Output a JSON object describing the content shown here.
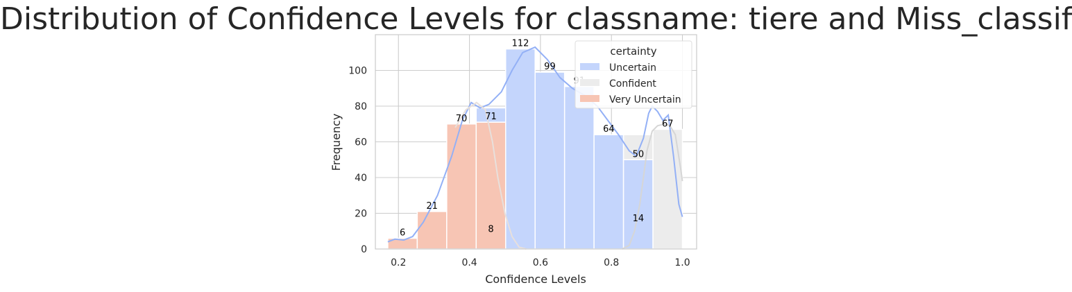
{
  "chart_data": {
    "type": "bar",
    "title": "Distribution of Confidence Levels for classname: tiere and Miss_classified",
    "xlabel": "Confidence Levels",
    "ylabel": "Frequency",
    "xlim": [
      0.135,
      1.04
    ],
    "ylim": [
      0,
      120
    ],
    "xticks": [
      0.2,
      0.4,
      0.6,
      0.8,
      1.0
    ],
    "xtick_labels": [
      "0.2",
      "0.4",
      "0.6",
      "0.8",
      "1.0"
    ],
    "yticks": [
      0,
      20,
      40,
      60,
      80,
      100
    ],
    "ytick_labels": [
      "0",
      "20",
      "40",
      "60",
      "80",
      "100"
    ],
    "grid": true,
    "bin_edges": [
      0.17,
      0.253,
      0.336,
      0.419,
      0.502,
      0.585,
      0.668,
      0.751,
      0.834,
      0.917,
      1.0
    ],
    "series": [
      {
        "name": "Very Uncertain",
        "color": "#f7c5b4",
        "values": [
          6,
          21,
          70,
          71,
          0,
          0,
          0,
          0,
          0,
          0
        ]
      },
      {
        "name": "Uncertain",
        "color": "#c4d5fc",
        "values": [
          0,
          0,
          0,
          8,
          112,
          99,
          91,
          64,
          50,
          0
        ]
      },
      {
        "name": "Confident",
        "color": "#ececec",
        "values": [
          0,
          0,
          0,
          0,
          0,
          0,
          0,
          0,
          14,
          67
        ]
      }
    ],
    "stacked": true,
    "bar_labels": [
      {
        "x": 0.2115,
        "y": 6,
        "text": "6"
      },
      {
        "x": 0.2945,
        "y": 21,
        "text": "21"
      },
      {
        "x": 0.3775,
        "y": 70,
        "text": "70"
      },
      {
        "x": 0.4605,
        "y": 71,
        "text": "71"
      },
      {
        "x": 0.4605,
        "y": 8,
        "text": "8"
      },
      {
        "x": 0.5435,
        "y": 112,
        "text": "112"
      },
      {
        "x": 0.6265,
        "y": 99,
        "text": "99"
      },
      {
        "x": 0.7095,
        "y": 91,
        "text": "91"
      },
      {
        "x": 0.7925,
        "y": 64,
        "text": "64"
      },
      {
        "x": 0.8755,
        "y": 50,
        "text": "50"
      },
      {
        "x": 0.8755,
        "y": 14,
        "text": "14"
      },
      {
        "x": 0.9585,
        "y": 67,
        "text": "67"
      }
    ],
    "kde": [
      {
        "name": "Uncertain",
        "color": "#93b0f6",
        "points": [
          [
            0.17,
            4
          ],
          [
            0.19,
            5.5
          ],
          [
            0.215,
            5
          ],
          [
            0.24,
            7
          ],
          [
            0.27,
            15
          ],
          [
            0.31,
            30
          ],
          [
            0.35,
            52
          ],
          [
            0.38,
            72
          ],
          [
            0.405,
            82
          ],
          [
            0.43,
            79
          ],
          [
            0.455,
            81
          ],
          [
            0.49,
            88
          ],
          [
            0.52,
            100
          ],
          [
            0.55,
            110
          ],
          [
            0.585,
            113
          ],
          [
            0.62,
            106
          ],
          [
            0.655,
            96
          ],
          [
            0.69,
            90
          ],
          [
            0.725,
            86
          ],
          [
            0.76,
            80
          ],
          [
            0.79,
            72
          ],
          [
            0.82,
            64
          ],
          [
            0.85,
            55
          ],
          [
            0.87,
            52
          ],
          [
            0.89,
            62
          ],
          [
            0.905,
            76
          ],
          [
            0.915,
            80
          ],
          [
            0.93,
            77
          ],
          [
            0.945,
            72
          ],
          [
            0.96,
            75
          ],
          [
            0.975,
            52
          ],
          [
            0.99,
            25
          ],
          [
            1.0,
            18
          ]
        ]
      },
      {
        "name": "Very Uncertain",
        "color": "#e8e0dc",
        "points": [
          [
            0.36,
            68
          ],
          [
            0.39,
            78
          ],
          [
            0.42,
            82
          ],
          [
            0.445,
            78
          ],
          [
            0.465,
            60
          ],
          [
            0.48,
            40
          ],
          [
            0.5,
            20
          ],
          [
            0.52,
            7
          ],
          [
            0.54,
            1
          ],
          [
            0.56,
            0
          ]
        ]
      },
      {
        "name": "Confident",
        "color": "#d6d6d6",
        "points": [
          [
            0.83,
            0
          ],
          [
            0.85,
            2
          ],
          [
            0.865,
            10
          ],
          [
            0.88,
            25
          ],
          [
            0.89,
            40
          ],
          [
            0.9,
            55
          ],
          [
            0.915,
            66
          ],
          [
            0.93,
            69
          ],
          [
            0.95,
            70
          ],
          [
            0.965,
            69
          ],
          [
            0.98,
            64
          ],
          [
            0.995,
            45
          ],
          [
            1.0,
            38
          ]
        ]
      }
    ],
    "legend": {
      "title": "certainty",
      "position": "top-right",
      "entries": [
        {
          "label": "Uncertain",
          "color": "#c4d5fc"
        },
        {
          "label": "Confident",
          "color": "#ececec"
        },
        {
          "label": "Very Uncertain",
          "color": "#f7c5b4"
        }
      ]
    }
  }
}
